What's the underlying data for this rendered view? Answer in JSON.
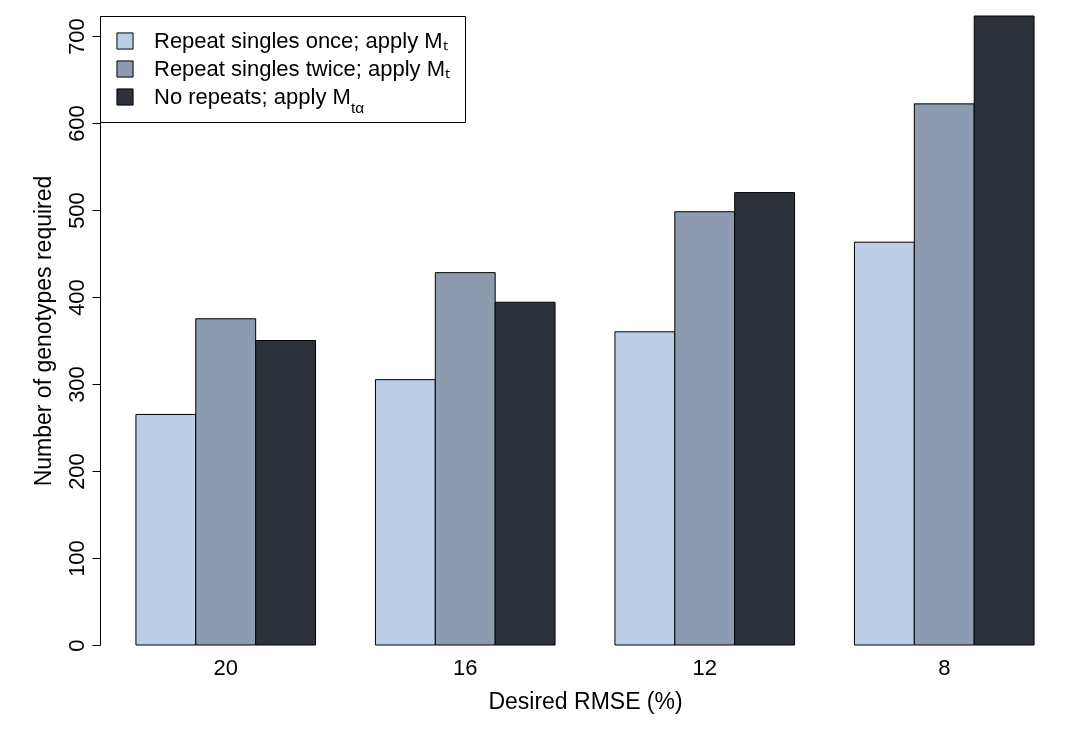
{
  "chart_data": {
    "type": "bar",
    "xlabel": "Desired RMSE (%)",
    "ylabel": "Number of genotypes required",
    "categories": [
      "20",
      "16",
      "12",
      "8"
    ],
    "series": [
      {
        "name": "Repeat singles once; apply Mₜ",
        "color": "#bccde8",
        "values": [
          265,
          305,
          360,
          463
        ]
      },
      {
        "name": "Repeat singles twice; apply Mₜ",
        "color": "#8c9bb0",
        "values": [
          375,
          428,
          498,
          622
        ]
      },
      {
        "name": "No repeats; apply M$_{tα}$",
        "color": "#2d323a",
        "values": [
          350,
          394,
          520,
          723
        ]
      }
    ],
    "ylim": [
      0,
      723
    ],
    "yticks": [
      0,
      100,
      200,
      300,
      400,
      500,
      600,
      700
    ],
    "grid": false,
    "legend": "top left"
  }
}
